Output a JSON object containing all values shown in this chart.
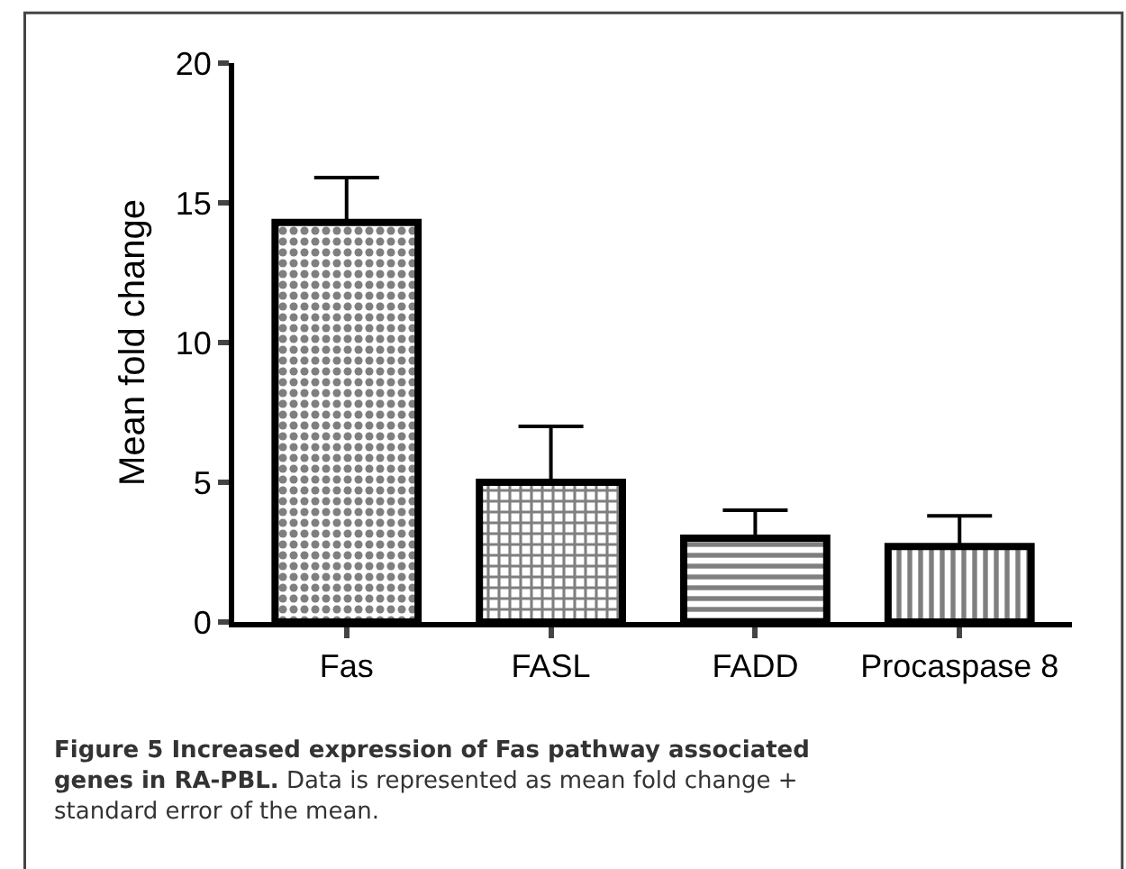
{
  "chart_data": {
    "type": "bar",
    "title": "Figure 5 Increased expression of Fas pathway associated genes in RA-PBL.",
    "annotations": [
      "Data is represented as mean fold change + standard error of the mean."
    ],
    "ylabel": "Mean fold change",
    "categories": [
      "Fas",
      "FASL",
      "FADD",
      "Procaspase 8"
    ],
    "values": [
      14.3,
      5.0,
      3.0,
      2.7
    ],
    "errors": [
      [
        14.3,
        15.9
      ],
      [
        5.0,
        7.0
      ],
      [
        3.0,
        4.0
      ],
      [
        2.7,
        3.8
      ]
    ],
    "color": "#000000",
    "ylim": [
      0,
      20
    ],
    "yticks": [
      0,
      5,
      10,
      15,
      20
    ]
  }
}
